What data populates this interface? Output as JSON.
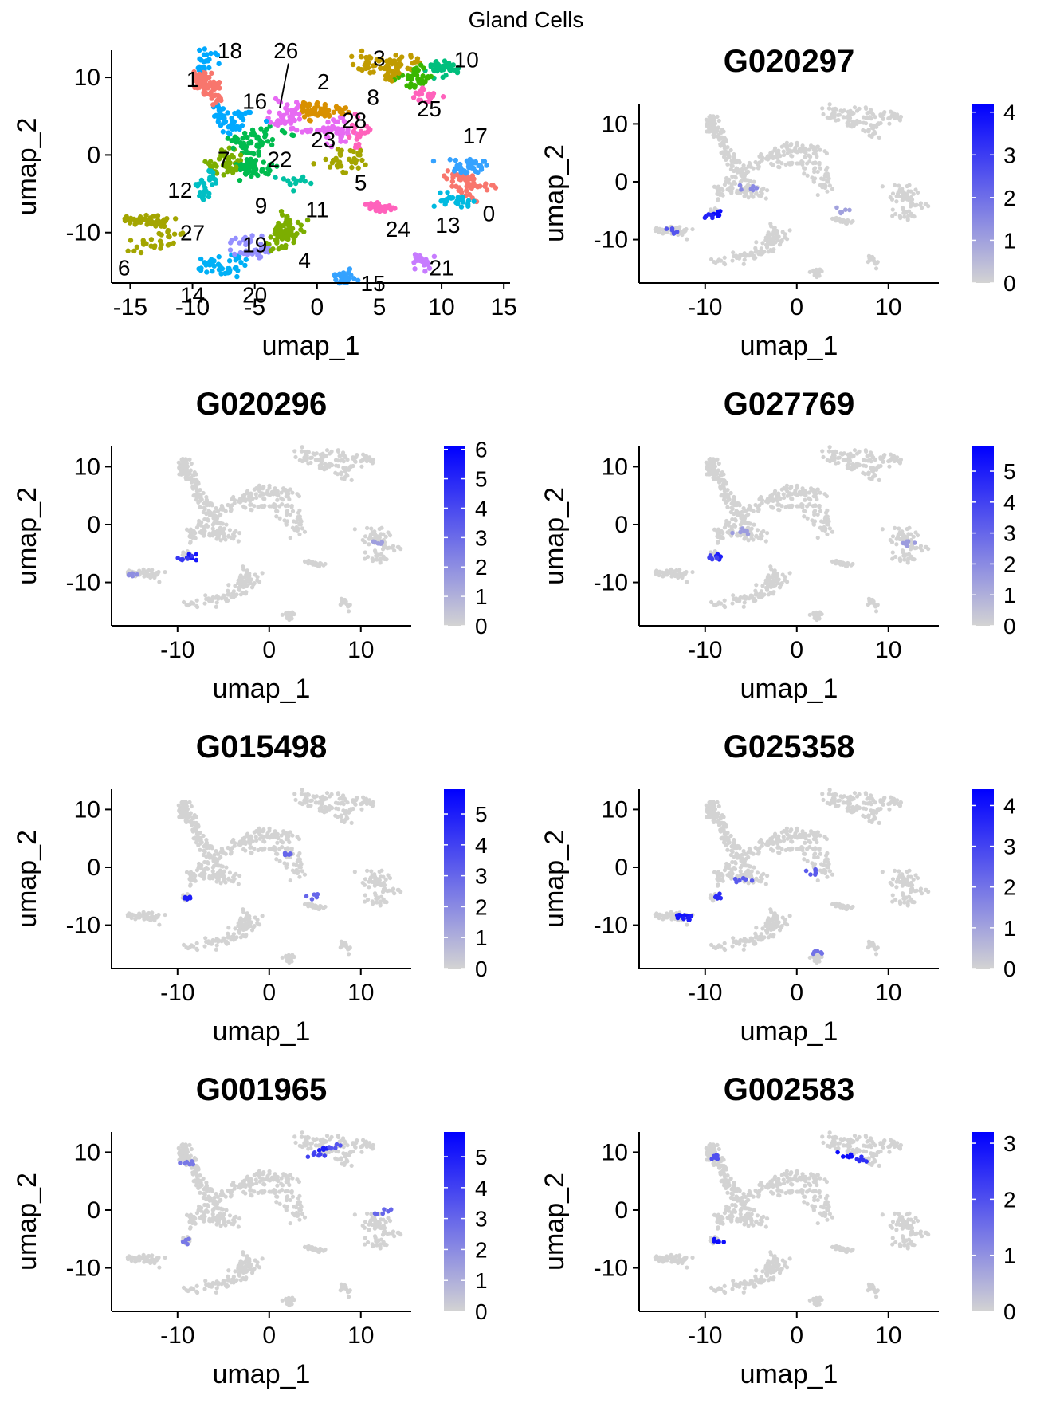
{
  "figure_title": "Gland Cells",
  "colors": {
    "low": "#d3d3d3",
    "high": "#0000ff"
  },
  "chart_data": [
    {
      "type": "scatter",
      "title": "",
      "xlabel": "umap_1",
      "ylabel": "umap_2",
      "xlim": [
        -16.5,
        15.5
      ],
      "ylim": [
        -16.5,
        13.5
      ],
      "xticks": [
        -15,
        -10,
        -5,
        0,
        5,
        10,
        15
      ],
      "yticks": [
        -10,
        0,
        10
      ],
      "legend": "none",
      "clusters": [
        {
          "label": "0",
          "color": "#F8766D",
          "x": 11.8,
          "y": -4.0,
          "label_x": 13.8,
          "label_y": -7.5
        },
        {
          "label": "1",
          "color": "#F8766D",
          "x": -8.8,
          "y": 9.2,
          "label_x": -10.0,
          "label_y": 9.8
        },
        {
          "label": "2",
          "color": "#D89000",
          "x": 0.0,
          "y": 5.8,
          "label_x": 0.5,
          "label_y": 9.5
        },
        {
          "label": "3",
          "color": "#C09B00",
          "x": 6.5,
          "y": 11.5,
          "label_x": 5.0,
          "label_y": 12.5
        },
        {
          "label": "4",
          "color": "#7CAE00",
          "x": -2.5,
          "y": -10.5,
          "label_x": -1.0,
          "label_y": -13.5
        },
        {
          "label": "5",
          "color": "#A3A500",
          "x": 1.8,
          "y": -1.2,
          "label_x": 3.5,
          "label_y": -3.5
        },
        {
          "label": "6",
          "color": "#A3A500",
          "x": -14.0,
          "y": -11.5,
          "label_x": -15.5,
          "label_y": -14.5
        },
        {
          "label": "7",
          "color": "#7CAE00",
          "x": -7.0,
          "y": -1.5,
          "label_x": -7.5,
          "label_y": -0.5
        },
        {
          "label": "8",
          "color": "#39B600",
          "x": 8.0,
          "y": 10.0,
          "label_x": 4.5,
          "label_y": 7.5
        },
        {
          "label": "9",
          "color": "#00BB4E",
          "x": -5.5,
          "y": -1.8,
          "label_x": -4.5,
          "label_y": -6.5
        },
        {
          "label": "10",
          "color": "#00BF7D",
          "x": 10.0,
          "y": 11.0,
          "label_x": 12.0,
          "label_y": 12.3
        },
        {
          "label": "11",
          "color": "#00C1A3",
          "x": -2.0,
          "y": -3.5,
          "label_x": 0.0,
          "label_y": -7.0
        },
        {
          "label": "12",
          "color": "#00BFC4",
          "x": -9.0,
          "y": -3.5,
          "label_x": -11.0,
          "label_y": -4.5
        },
        {
          "label": "13",
          "color": "#00BAE0",
          "x": 10.5,
          "y": -6.0,
          "label_x": 10.5,
          "label_y": -9.0
        },
        {
          "label": "14",
          "color": "#00B0F6",
          "x": -8.5,
          "y": -14.5,
          "label_x": -10.0,
          "label_y": -18.0
        },
        {
          "label": "15",
          "color": "#35A2FF",
          "x": 2.0,
          "y": -16.0,
          "label_x": 4.5,
          "label_y": -16.5
        },
        {
          "label": "16",
          "color": "#00A9FF",
          "x": -6.0,
          "y": 5.0,
          "label_x": -5.0,
          "label_y": 7.0
        },
        {
          "label": "17",
          "color": "#35A2FF",
          "x": 12.7,
          "y": -1.0,
          "label_x": 12.7,
          "label_y": 2.5
        },
        {
          "label": "18",
          "color": "#00A9FF",
          "x": -8.8,
          "y": 12.3,
          "label_x": -7.0,
          "label_y": 13.5
        },
        {
          "label": "19",
          "color": "#9590FF",
          "x": -5.5,
          "y": -11.0,
          "label_x": -5.0,
          "label_y": -11.5
        },
        {
          "label": "20",
          "color": "#00B0F6",
          "x": -7.0,
          "y": -15.0,
          "label_x": -5.0,
          "label_y": -18.0
        },
        {
          "label": "21",
          "color": "#C77CFF",
          "x": 8.5,
          "y": -14.0,
          "label_x": 10.0,
          "label_y": -14.5
        },
        {
          "label": "22",
          "color": "#00BB4E",
          "x": -4.5,
          "y": 1.5,
          "label_x": -3.0,
          "label_y": -0.5
        },
        {
          "label": "23",
          "color": "#E76BF3",
          "x": 1.5,
          "y": 3.0,
          "label_x": 0.5,
          "label_y": 2.0
        },
        {
          "label": "24",
          "color": "#FF62BC",
          "x": 5.0,
          "y": -6.8,
          "label_x": 6.5,
          "label_y": -9.5
        },
        {
          "label": "25",
          "color": "#FF62BC",
          "x": 9.0,
          "y": 7.5,
          "label_x": 9.0,
          "label_y": 6.0
        },
        {
          "label": "26",
          "color": "#E76BF3",
          "x": -2.5,
          "y": 6.0,
          "label_x": -2.5,
          "label_y": 13.5
        },
        {
          "label": "27",
          "color": "#A3A500",
          "x": -12.0,
          "y": -10.5,
          "label_x": -10.0,
          "label_y": -10.0
        },
        {
          "label": "28",
          "color": "#FF62BC",
          "x": 3.5,
          "y": 3.0,
          "label_x": 3.0,
          "label_y": 4.5
        }
      ]
    },
    {
      "type": "scatter",
      "title": "G020297",
      "xlabel": "umap_1",
      "ylabel": "umap_2",
      "xticks": [
        -10,
        0,
        10
      ],
      "yticks": [
        -10,
        0,
        10
      ],
      "colorbar_ticks": [
        0,
        1,
        2,
        3,
        4
      ],
      "color_max": 4.2,
      "hotspots": [
        [
          -8.5,
          -5.5,
          4.0
        ],
        [
          -9.5,
          -5.8,
          3.5
        ],
        [
          -5,
          -1,
          1.5
        ],
        [
          5,
          -5,
          1.0
        ],
        [
          -13.5,
          -8.5,
          2.5
        ]
      ]
    },
    {
      "type": "scatter",
      "title": "G020296",
      "xlabel": "umap_1",
      "ylabel": "umap_2",
      "xticks": [
        -10,
        0,
        10
      ],
      "yticks": [
        -10,
        0,
        10
      ],
      "colorbar_ticks": [
        0,
        1,
        2,
        3,
        4,
        5,
        6
      ],
      "color_max": 6.1,
      "hotspots": [
        [
          -8.7,
          -5.6,
          5.5
        ],
        [
          -9.3,
          -5.8,
          4.5
        ],
        [
          12,
          -3,
          1.5
        ],
        [
          -15,
          -8.5,
          2.0
        ]
      ]
    },
    {
      "type": "scatter",
      "title": "G027769",
      "xlabel": "umap_1",
      "ylabel": "umap_2",
      "xticks": [
        -10,
        0,
        10
      ],
      "yticks": [
        -10,
        0,
        10
      ],
      "colorbar_ticks": [
        0,
        1,
        2,
        3,
        4,
        5
      ],
      "color_max": 5.8,
      "hotspots": [
        [
          -8.5,
          -5.6,
          5.0
        ],
        [
          -9.2,
          -5.8,
          4.0
        ],
        [
          12,
          -3,
          1.5
        ],
        [
          -6,
          -1,
          1.5
        ]
      ]
    },
    {
      "type": "scatter",
      "title": "G015498",
      "xlabel": "umap_1",
      "ylabel": "umap_2",
      "xticks": [
        -10,
        0,
        10
      ],
      "yticks": [
        -10,
        0,
        10
      ],
      "colorbar_ticks": [
        0,
        1,
        2,
        3,
        4,
        5
      ],
      "color_max": 5.8,
      "hotspots": [
        [
          -9.0,
          -5.5,
          5.0
        ],
        [
          1.5,
          2.0,
          3.0
        ],
        [
          5,
          -5,
          3.0
        ]
      ]
    },
    {
      "type": "scatter",
      "title": "G025358",
      "xlabel": "umap_1",
      "ylabel": "umap_2",
      "xticks": [
        -10,
        0,
        10
      ],
      "yticks": [
        -10,
        0,
        10
      ],
      "colorbar_ticks": [
        0,
        1,
        2,
        3,
        4
      ],
      "color_max": 4.4,
      "hotspots": [
        [
          -13.0,
          -8.3,
          4.0
        ],
        [
          -12.0,
          -8.8,
          3.8
        ],
        [
          -8.7,
          -5.2,
          3.5
        ],
        [
          -6,
          -2,
          2.5
        ],
        [
          1.5,
          -1,
          2.5
        ],
        [
          2,
          -15,
          2.0
        ]
      ]
    },
    {
      "type": "scatter",
      "title": "G001965",
      "xlabel": "umap_1",
      "ylabel": "umap_2",
      "xticks": [
        -10,
        0,
        10
      ],
      "yticks": [
        -10,
        0,
        10
      ],
      "colorbar_ticks": [
        0,
        1,
        2,
        3,
        4,
        5
      ],
      "color_max": 5.8,
      "hotspots": [
        [
          6.0,
          10.5,
          5.0
        ],
        [
          5.0,
          9.5,
          4.0
        ],
        [
          7.0,
          11.0,
          3.5
        ],
        [
          12.5,
          -0.5,
          3.0
        ],
        [
          -9,
          8,
          2.5
        ],
        [
          -9,
          -5.5,
          2.5
        ]
      ]
    },
    {
      "type": "scatter",
      "title": "G002583",
      "xlabel": "umap_1",
      "ylabel": "umap_2",
      "xticks": [
        -10,
        0,
        10
      ],
      "yticks": [
        -10,
        0,
        10
      ],
      "colorbar_ticks": [
        0,
        1,
        2,
        3
      ],
      "color_max": 3.2,
      "hotspots": [
        [
          5.5,
          9.5,
          3.0
        ],
        [
          7.0,
          8.8,
          2.5
        ],
        [
          -8.8,
          -5.5,
          3.0
        ],
        [
          -9,
          9,
          2.0
        ]
      ]
    }
  ]
}
